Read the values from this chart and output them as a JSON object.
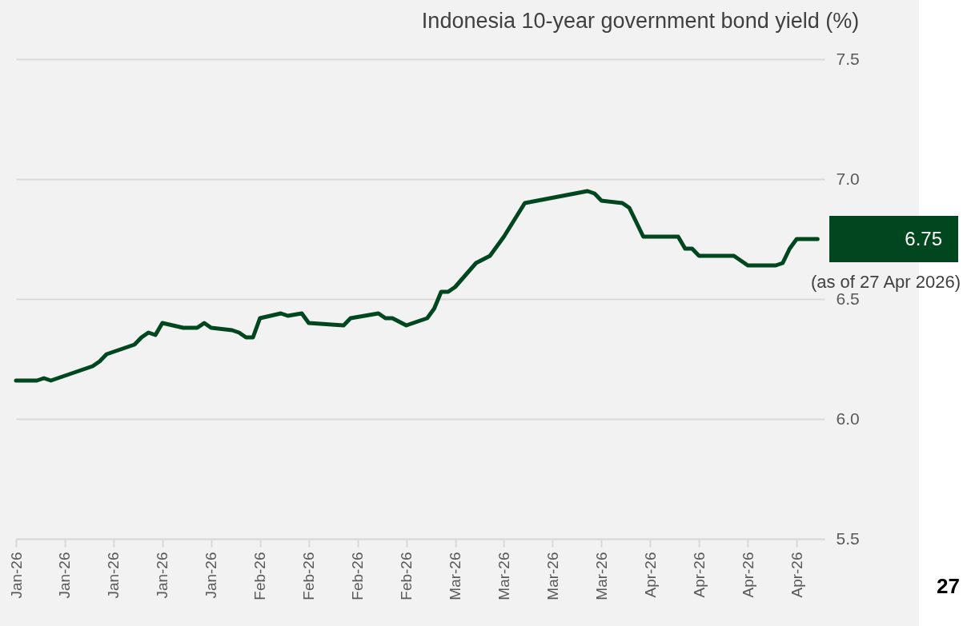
{
  "chart_data": {
    "type": "line",
    "title": "Indonesia 10-year government bond yield (%)",
    "x": [
      "2026-01-02",
      "2026-01-05",
      "2026-01-06",
      "2026-01-07",
      "2026-01-08",
      "2026-01-13",
      "2026-01-14",
      "2026-01-15",
      "2026-01-19",
      "2026-01-20",
      "2026-01-21",
      "2026-01-22",
      "2026-01-23",
      "2026-01-26",
      "2026-01-28",
      "2026-01-29",
      "2026-01-30",
      "2026-02-02",
      "2026-02-03",
      "2026-02-04",
      "2026-02-05",
      "2026-02-06",
      "2026-02-09",
      "2026-02-10",
      "2026-02-12",
      "2026-02-13",
      "2026-02-18",
      "2026-02-19",
      "2026-02-23",
      "2026-02-24",
      "2026-02-25",
      "2026-02-27",
      "2026-03-02",
      "2026-03-03",
      "2026-03-04",
      "2026-03-05",
      "2026-03-06",
      "2026-03-09",
      "2026-03-11",
      "2026-03-12",
      "2026-03-13",
      "2026-03-16",
      "2026-03-25",
      "2026-03-26",
      "2026-03-27",
      "2026-03-30",
      "2026-03-31",
      "2026-04-01",
      "2026-04-02",
      "2026-04-07",
      "2026-04-08",
      "2026-04-09",
      "2026-04-10",
      "2026-04-14",
      "2026-04-15",
      "2026-04-17",
      "2026-04-21",
      "2026-04-22",
      "2026-04-23",
      "2026-04-24",
      "2026-04-27"
    ],
    "series": [
      {
        "color": "#00471f",
        "values": [
          6.16,
          6.16,
          6.17,
          6.16,
          6.17,
          6.22,
          6.24,
          6.27,
          6.31,
          6.34,
          6.36,
          6.35,
          6.4,
          6.38,
          6.38,
          6.4,
          6.38,
          6.37,
          6.36,
          6.34,
          6.34,
          6.42,
          6.44,
          6.43,
          6.44,
          6.4,
          6.39,
          6.42,
          6.44,
          6.42,
          6.42,
          6.39,
          6.42,
          6.46,
          6.53,
          6.53,
          6.55,
          6.65,
          6.68,
          6.72,
          6.76,
          6.9,
          6.95,
          6.94,
          6.91,
          6.9,
          6.88,
          6.82,
          6.76,
          6.76,
          6.71,
          6.71,
          6.68,
          6.68,
          6.68,
          6.64,
          6.64,
          6.65,
          6.71,
          6.75,
          6.75
        ]
      }
    ],
    "xlim": [
      "2026-01-02",
      "2026-04-28"
    ],
    "xticks": [
      {
        "value": "2026-01-02",
        "label": "Jan-26"
      },
      {
        "value": "2026-01-09",
        "label": "Jan-26"
      },
      {
        "value": "2026-01-16",
        "label": "Jan-26"
      },
      {
        "value": "2026-01-23",
        "label": "Jan-26"
      },
      {
        "value": "2026-01-30",
        "label": "Jan-26"
      },
      {
        "value": "2026-02-06",
        "label": "Feb-26"
      },
      {
        "value": "2026-02-13",
        "label": "Feb-26"
      },
      {
        "value": "2026-02-20",
        "label": "Feb-26"
      },
      {
        "value": "2026-02-27",
        "label": "Feb-26"
      },
      {
        "value": "2026-03-06",
        "label": "Mar-26"
      },
      {
        "value": "2026-03-13",
        "label": "Mar-26"
      },
      {
        "value": "2026-03-20",
        "label": "Mar-26"
      },
      {
        "value": "2026-03-27",
        "label": "Mar-26"
      },
      {
        "value": "2026-04-03",
        "label": "Apr-26"
      },
      {
        "value": "2026-04-10",
        "label": "Apr-26"
      },
      {
        "value": "2026-04-17",
        "label": "Apr-26"
      },
      {
        "value": "2026-04-24",
        "label": "Apr-26"
      }
    ],
    "ylim": [
      5.5,
      7.5
    ],
    "yticks": [
      5.5,
      {
        "value": 6,
        "label": "6.0"
      },
      6.5,
      {
        "value": 7,
        "label": "7.0"
      },
      7.5
    ],
    "grid": "y",
    "line_style": "solid",
    "annotations": [
      "6.75",
      "(as of 27 Apr 2026)",
      "27"
    ]
  }
}
